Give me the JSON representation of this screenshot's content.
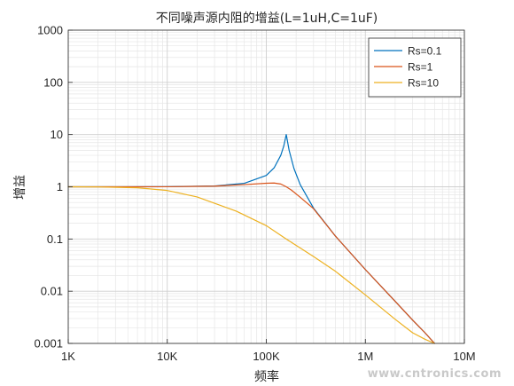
{
  "chart_data": {
    "type": "line",
    "title": "不同噪声源内阻的增益(L=1uH,C=1uF)",
    "xlabel": "频率",
    "ylabel": "增益",
    "x_scale": "log",
    "y_scale": "log",
    "xlim": [
      1000,
      10000000
    ],
    "ylim": [
      0.001,
      1000
    ],
    "x_tick_values": [
      1000,
      10000,
      100000,
      1000000,
      10000000
    ],
    "x_tick_labels": [
      "1K",
      "10K",
      "100K",
      "1M",
      "10M"
    ],
    "y_tick_values": [
      0.001,
      0.01,
      0.1,
      1,
      10,
      100,
      1000
    ],
    "y_tick_labels": [
      "0.001",
      "0.01",
      "0.1",
      "1",
      "10",
      "100",
      "1000"
    ],
    "grid": true,
    "minor_grid": true,
    "legend_position": "top-right",
    "series": [
      {
        "name": "Rs=0.1",
        "color": "#0072BD",
        "x": [
          1000,
          3000,
          10000,
          30000,
          60000,
          100000,
          120000,
          140000,
          150000,
          159000,
          170000,
          190000,
          220000,
          300000,
          500000,
          1000000,
          2000000,
          3000000,
          4000000,
          5000000
        ],
        "y": [
          1.0,
          1.0,
          1.004,
          1.037,
          1.166,
          1.65,
          2.31,
          4.0,
          6.0,
          10.0,
          5.0,
          2.25,
          1.1,
          0.39,
          0.113,
          0.026,
          0.0064,
          0.0028,
          0.0016,
          0.001
        ]
      },
      {
        "name": "Rs=1",
        "color": "#D95319",
        "x": [
          1000,
          10000,
          30000,
          60000,
          100000,
          120000,
          140000,
          159000,
          180000,
          220000,
          300000,
          500000,
          1000000,
          2000000,
          3000000,
          4000000,
          5000000
        ],
        "y": [
          1.0,
          1.003,
          1.03,
          1.1,
          1.17,
          1.18,
          1.13,
          1.0,
          0.86,
          0.63,
          0.38,
          0.113,
          0.026,
          0.0064,
          0.0028,
          0.0016,
          0.001
        ]
      },
      {
        "name": "Rs=10",
        "color": "#EDB120",
        "x": [
          1000,
          2000,
          5000,
          10000,
          20000,
          50000,
          100000,
          159000,
          300000,
          500000,
          1000000,
          2000000,
          3000000,
          4000000,
          5000000
        ],
        "y": [
          1.0,
          0.993,
          0.957,
          0.85,
          0.64,
          0.34,
          0.18,
          0.1,
          0.046,
          0.024,
          0.0085,
          0.0029,
          0.0016,
          0.0012,
          0.001
        ]
      }
    ]
  },
  "watermark": "www.cntronics.com"
}
